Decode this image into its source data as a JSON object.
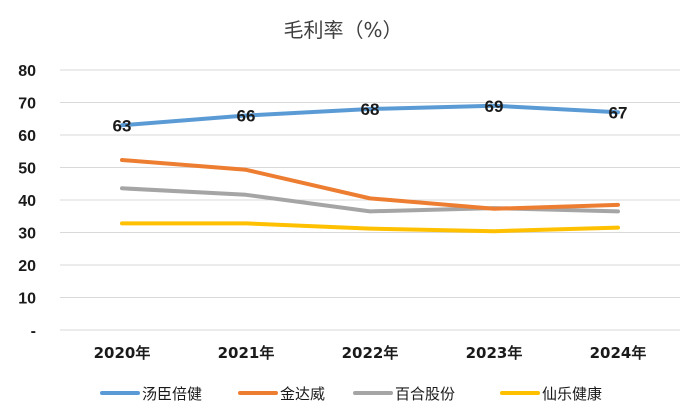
{
  "chart_data": {
    "type": "line",
    "title": "毛利率（%）",
    "categories": [
      "2020年",
      "2021年",
      "2022年",
      "2023年",
      "2024年"
    ],
    "ylim": [
      0,
      80
    ],
    "yticks": [
      {
        "value": 0,
        "label": "-"
      },
      {
        "value": 10,
        "label": "10"
      },
      {
        "value": 20,
        "label": "20"
      },
      {
        "value": 30,
        "label": "30"
      },
      {
        "value": 40,
        "label": "40"
      },
      {
        "value": 50,
        "label": "50"
      },
      {
        "value": 60,
        "label": "60"
      },
      {
        "value": 70,
        "label": "70"
      },
      {
        "value": 80,
        "label": "80"
      }
    ],
    "grid": true,
    "legend_position": "bottom",
    "series": [
      {
        "name": "汤臣倍健",
        "color": "#5b9bd5",
        "values": [
          63,
          66,
          68,
          69,
          67
        ],
        "labels": [
          "63",
          "66",
          "68",
          "69",
          "67"
        ]
      },
      {
        "name": "金达威",
        "color": "#ed7d31",
        "values": [
          52.3,
          49.3,
          40.5,
          37.3,
          38.5
        ]
      },
      {
        "name": "百合股份",
        "color": "#a5a5a5",
        "values": [
          43.6,
          41.6,
          36.5,
          37.5,
          36.5
        ]
      },
      {
        "name": "仙乐健康",
        "color": "#ffc000",
        "values": [
          32.8,
          32.8,
          31.2,
          30.4,
          31.5
        ]
      }
    ]
  }
}
